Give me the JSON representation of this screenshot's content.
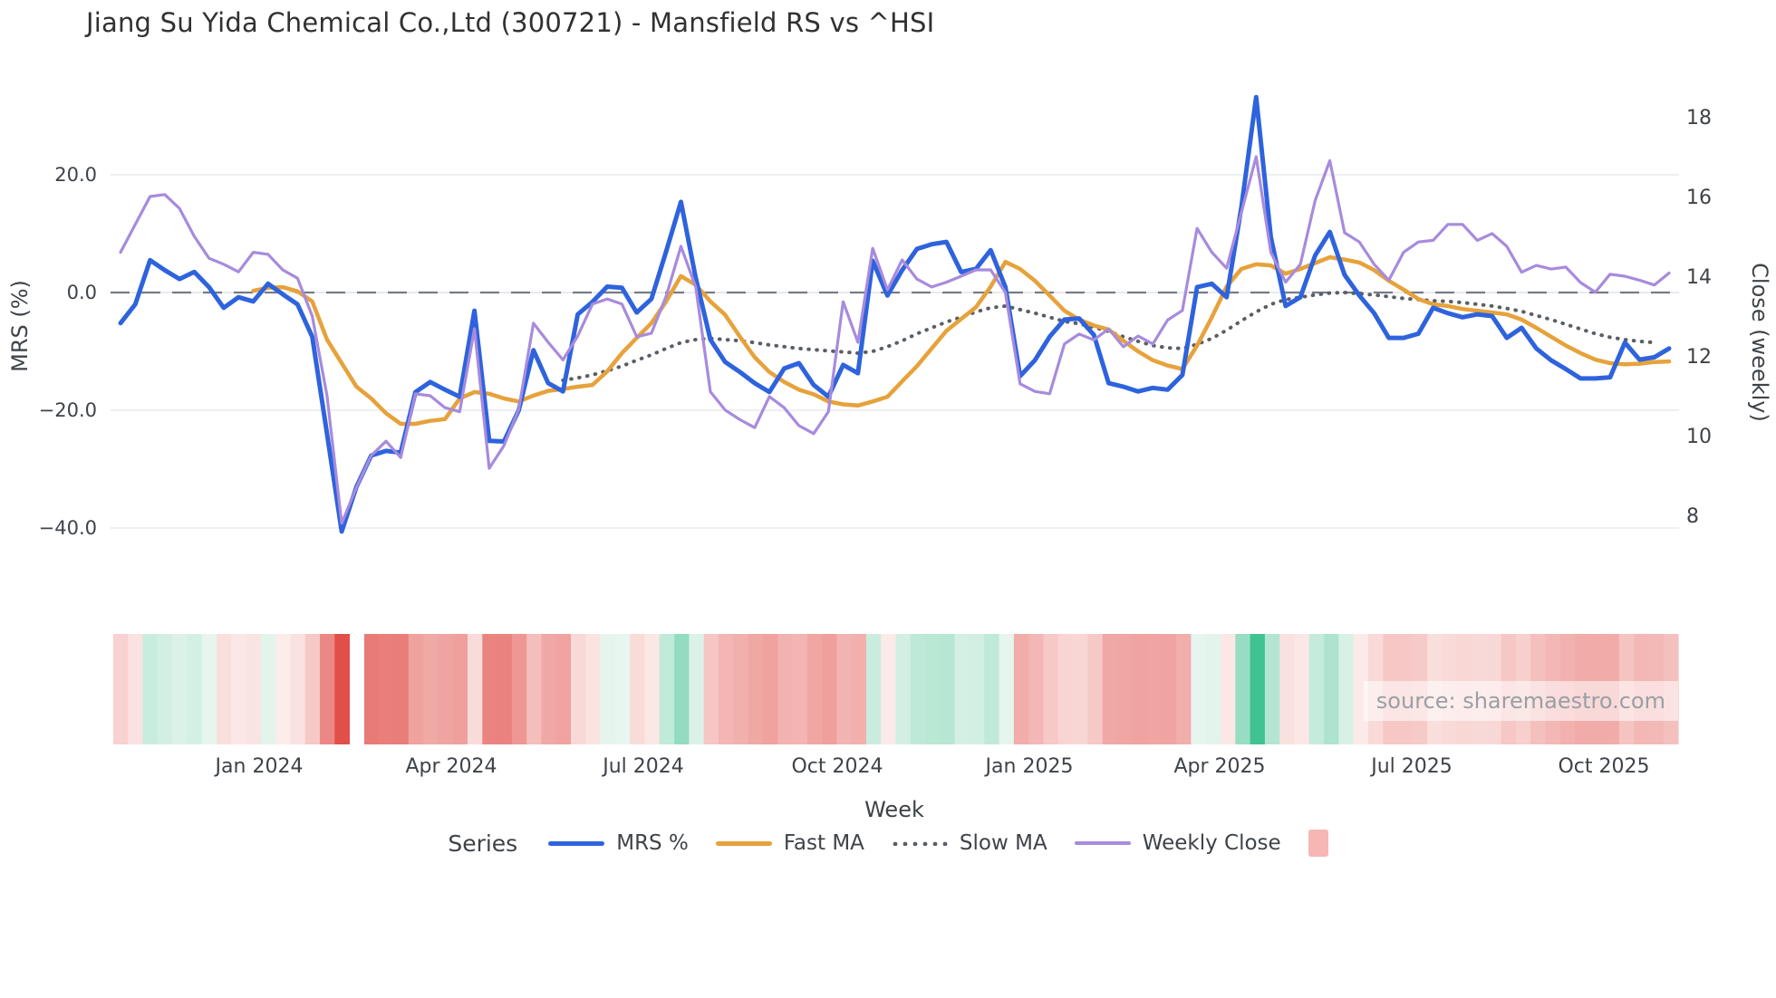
{
  "title": "Jiang Su Yida Chemical Co.,Ltd (300721) - Mansfield RS vs ^HSI",
  "source_text": "source: sharemaestro.com",
  "legend": {
    "title": "Series",
    "items": [
      {
        "label": "MRS %",
        "color": "#2e63dd",
        "style": "solid"
      },
      {
        "label": "Fast MA",
        "color": "#e6a23b",
        "style": "solid"
      },
      {
        "label": "Slow MA",
        "color": "#5a5f66",
        "style": "dotted"
      },
      {
        "label": "Weekly Close",
        "color": "#a78bdd",
        "style": "solid"
      }
    ],
    "heatmap_swatch_color": "#f6b6b4"
  },
  "colors": {
    "background": "#ffffff",
    "grid": "#e8eaee",
    "zero_dash": "#757b84",
    "tick_text": "#3e4348",
    "title_text": "#313131",
    "source_text": "#9a9fa4",
    "heatmap_negative": "#e14a46",
    "heatmap_positive": "#3dc190",
    "heatmap_neutral": "#fceeec"
  },
  "chart_data": {
    "type": "line",
    "title": "Jiang Su Yida Chemical Co.,Ltd (300721) - Mansfield RS vs ^HSI",
    "xlabel": "Week",
    "weeks": 106,
    "x_tick_labels": [
      "Jan 2024",
      "Apr 2024",
      "Jul 2024",
      "Oct 2024",
      "Jan 2025",
      "Apr 2025",
      "Jul 2025",
      "Oct 2025"
    ],
    "x_tick_weeks": [
      9.4,
      22.42,
      35.45,
      48.6,
      61.62,
      74.52,
      87.54,
      100.56
    ],
    "left_axis": {
      "label": "MRS (%)",
      "tick_labels": [
        "20.0",
        "0.0",
        "−20.0",
        "−40.0"
      ],
      "tick_values": [
        20,
        0,
        -20,
        -40
      ],
      "zero_line": "dashed",
      "grid": true
    },
    "right_axis": {
      "label": "Close (weekly)",
      "tick_labels": [
        "18",
        "16",
        "14",
        "12",
        "10",
        "8"
      ],
      "tick_values": [
        18,
        16,
        14,
        12,
        10,
        8
      ]
    },
    "legend_position": "bottom",
    "series": [
      {
        "name": "MRS %",
        "axis": "left",
        "color": "#2e63dd",
        "style": "solid",
        "width": 5,
        "values": [
          -5.2,
          -2,
          5.5,
          3.8,
          2.3,
          3.5,
          0.9,
          -2.6,
          -0.8,
          -1.5,
          1.5,
          -0.3,
          -2,
          -7.5,
          -24,
          -40.6,
          -33,
          -27.7,
          -26.9,
          -27.2,
          -16.9,
          -15.2,
          -16.5,
          -17.7,
          -3.1,
          -25.2,
          -25.3,
          -20,
          -9.8,
          -15.4,
          -16.8,
          -3.7,
          -1.6,
          1,
          0.8,
          -3.4,
          -1.1,
          7,
          15.4,
          2.5,
          -8,
          -11.8,
          -13.5,
          -15.4,
          -16.9,
          -12.9,
          -12,
          -15.7,
          -17.7,
          -12.3,
          -13.7,
          5.4,
          -0.5,
          3.8,
          7.4,
          8.2,
          8.6,
          3.5,
          4,
          7.2,
          0.9,
          -14.2,
          -11.5,
          -7.5,
          -4.6,
          -4.4,
          -7.2,
          -15.4,
          -16,
          -16.8,
          -16.2,
          -16.5,
          -14,
          0.9,
          1.5,
          -0.8,
          14.5,
          33.2,
          9.4,
          -2.3,
          -0.8,
          6.3,
          10.3,
          3,
          -0.5,
          -3.5,
          -7.7,
          -7.7,
          -7,
          -2.6,
          -3.5,
          -4.2,
          -3.7,
          -4,
          -7.7,
          -6,
          -9.5,
          -11.5,
          -13,
          -14.6,
          -14.6,
          -14.4,
          -8.5,
          -11.4,
          -11,
          -9.5
        ]
      },
      {
        "name": "Fast MA",
        "axis": "left",
        "color": "#e6a23b",
        "style": "solid",
        "width": 4.5,
        "values": [
          null,
          null,
          null,
          null,
          null,
          null,
          null,
          null,
          null,
          0.3,
          0.8,
          0.9,
          0.2,
          -1.5,
          -8,
          -12,
          -16,
          -18,
          -20.5,
          -22.3,
          -22.3,
          -21.8,
          -21.5,
          -18,
          -16.9,
          -17.2,
          -18,
          -18.5,
          -17.5,
          -16.7,
          -16.4,
          -16,
          -15.7,
          -13.4,
          -10.3,
          -7.7,
          -5.2,
          -1.5,
          2.8,
          1.3,
          -1.5,
          -3.8,
          -7.5,
          -11,
          -13.5,
          -15.2,
          -16.5,
          -17.3,
          -18.5,
          -19,
          -19.2,
          -18.5,
          -17.7,
          -15.1,
          -12.5,
          -9.5,
          -6.5,
          -4.5,
          -2.5,
          1,
          5.2,
          4,
          2,
          -0.5,
          -3.1,
          -4.6,
          -5.6,
          -6.3,
          -8.2,
          -10,
          -11.5,
          -12.4,
          -13,
          -9,
          -4.2,
          1,
          4,
          4.8,
          4.6,
          3.2,
          4,
          5,
          6,
          5.6,
          5.1,
          3.8,
          2,
          0.5,
          -1.1,
          -2,
          -2.3,
          -2.8,
          -3.1,
          -3.4,
          -3.7,
          -4.6,
          -6,
          -7.5,
          -9,
          -10.3,
          -11.4,
          -12,
          -12.2,
          -12.1,
          -11.8,
          -11.7
        ]
      },
      {
        "name": "Slow MA",
        "axis": "left",
        "color": "#5a5f66",
        "style": "dotted",
        "width": 4,
        "values": [
          null,
          null,
          null,
          null,
          null,
          null,
          null,
          null,
          null,
          null,
          null,
          null,
          null,
          null,
          null,
          null,
          null,
          null,
          null,
          null,
          null,
          null,
          null,
          null,
          null,
          null,
          null,
          null,
          null,
          null,
          -14.9,
          -14.5,
          -14,
          -13.3,
          -12.5,
          -11.5,
          -10.6,
          -9.5,
          -8.5,
          -8,
          -7.8,
          -8,
          -8.2,
          -8.5,
          -8.9,
          -9.2,
          -9.5,
          -9.7,
          -9.9,
          -10.1,
          -10.3,
          -10,
          -9.2,
          -8.2,
          -7,
          -6,
          -5,
          -4.2,
          -3.3,
          -2.6,
          -2.3,
          -2.9,
          -3.5,
          -4.2,
          -4.9,
          -5.3,
          -5.9,
          -6.6,
          -7.5,
          -8.3,
          -9,
          -9.4,
          -9.5,
          -8.8,
          -7.8,
          -6.4,
          -4.8,
          -3.3,
          -2,
          -1.2,
          -0.8,
          -0.4,
          -0.1,
          0,
          -0.2,
          -0.4,
          -0.7,
          -1,
          -1.2,
          -1.4,
          -1.5,
          -1.7,
          -2,
          -2.3,
          -2.7,
          -3.2,
          -3.9,
          -4.6,
          -5.4,
          -6.2,
          -7,
          -7.6,
          -8,
          -8.3,
          -8.5,
          null
        ]
      },
      {
        "name": "Weekly Close",
        "axis": "right",
        "color": "#a78bdd",
        "style": "solid",
        "width": 3.2,
        "values": [
          14.6,
          15.3,
          16,
          16.05,
          15.7,
          15,
          14.45,
          14.3,
          14.11,
          14.6,
          14.55,
          14.16,
          13.95,
          13,
          11,
          7.8,
          8.7,
          9.5,
          9.86,
          9.45,
          11.05,
          11,
          10.7,
          10.6,
          12.68,
          9.18,
          9.75,
          10.66,
          12.82,
          12.34,
          11.9,
          12.5,
          13.3,
          13.43,
          13.3,
          12.48,
          12.57,
          13.5,
          14.75,
          13.73,
          11.1,
          10.64,
          10.4,
          10.2,
          10.98,
          10.7,
          10.25,
          10.05,
          10.6,
          13.36,
          12.34,
          14.7,
          13.66,
          14.41,
          13.93,
          13.73,
          13.85,
          14,
          14.16,
          14.16,
          13.59,
          11.3,
          11.11,
          11.05,
          12.3,
          12.55,
          12.4,
          12.68,
          12.23,
          12.5,
          12.3,
          12.9,
          13.14,
          15.2,
          14.6,
          14.2,
          15.6,
          17,
          14.6,
          13.85,
          14.3,
          15.9,
          16.9,
          15.09,
          14.86,
          14.3,
          13.9,
          14.6,
          14.86,
          14.9,
          15.3,
          15.3,
          14.9,
          15.07,
          14.75,
          14.1,
          14.27,
          14.18,
          14.23,
          13.84,
          13.6,
          14.05,
          14,
          13.9,
          13.78,
          14.08
        ]
      }
    ],
    "heatmap": {
      "description": "weekly strip colored by MRS % value (red negative, green positive)",
      "values_from": "MRS %",
      "gap_weeks": [
        16
      ],
      "negative_color": "#e14a46",
      "positive_color": "#3dc190",
      "neutral_color": "#fceeec",
      "negative_scale_limit": -42,
      "positive_scale_limit": 34
    }
  }
}
